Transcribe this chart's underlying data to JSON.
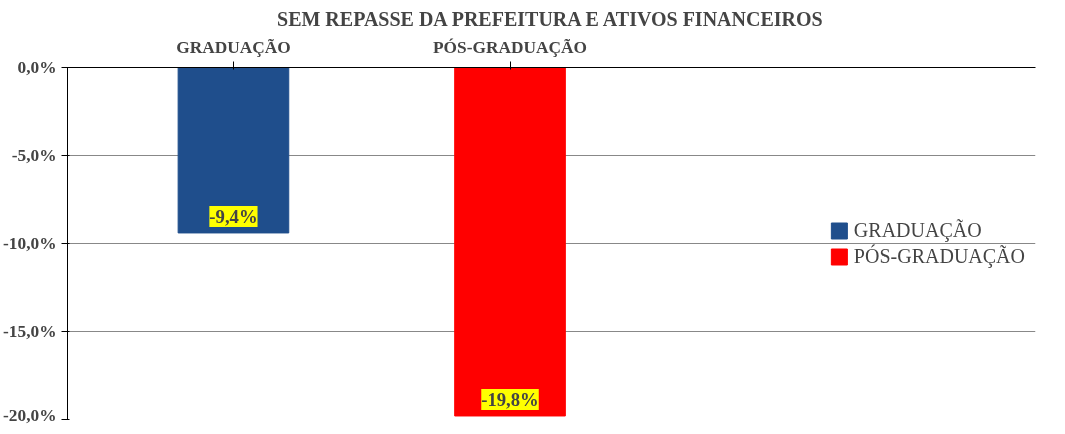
{
  "chart_data": {
    "type": "bar",
    "title": "SEM REPASSE DA PREFEITURA E ATIVOS FINANCEIROS",
    "categories": [
      "GRADUAÇÃO",
      "PÓS-GRADUAÇÃO"
    ],
    "series": [
      {
        "name": "GRADUAÇÃO",
        "color": "#1f4e8c",
        "values": [
          -9.4,
          null
        ],
        "value_labels": [
          "-9,4%",
          null
        ]
      },
      {
        "name": "PÓS-GRADUAÇÃO",
        "color": "#ff0000",
        "values": [
          null,
          -19.8
        ],
        "value_labels": [
          null,
          "-19,8%"
        ]
      }
    ],
    "ylim": [
      -20,
      0
    ],
    "yticks": [
      {
        "value": 0,
        "label": "0,0%"
      },
      {
        "value": -5,
        "label": "-5,0%"
      },
      {
        "value": -10,
        "label": "-10,0%"
      },
      {
        "value": -15,
        "label": "-15,0%"
      },
      {
        "value": -20,
        "label": "-20,0%"
      }
    ],
    "grid": "y",
    "legend": "right"
  }
}
